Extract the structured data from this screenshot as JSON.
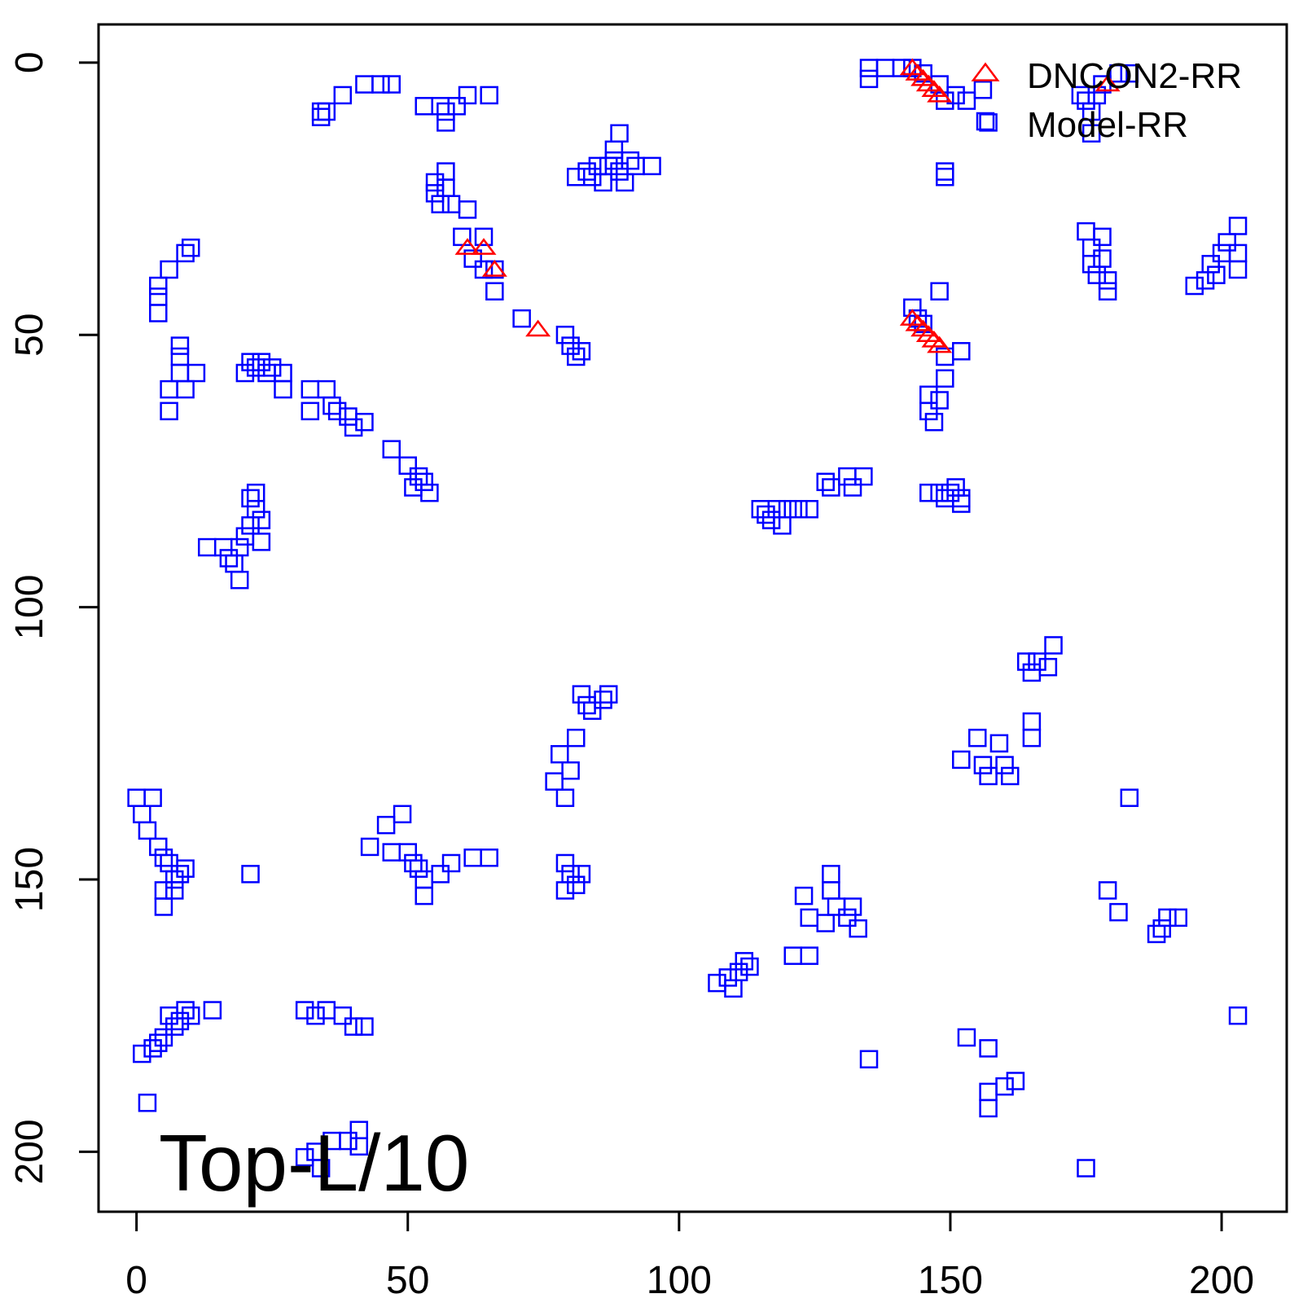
{
  "chart_data": {
    "type": "scatter",
    "annotation": "Top-L/10",
    "xlim": [
      -7,
      212
    ],
    "ylim": [
      -7,
      211
    ],
    "y_reversed": true,
    "x_ticks": [
      0,
      50,
      100,
      150,
      200
    ],
    "y_ticks": [
      0,
      50,
      100,
      150,
      200
    ],
    "legend": {
      "position": "top-right",
      "entries": [
        {
          "label": "DNCON2-RR",
          "shape": "triangle",
          "color": "#ff0000"
        },
        {
          "label": "Model-RR",
          "shape": "square",
          "color": "#0000ff"
        }
      ]
    },
    "series": [
      {
        "name": "Model-RR",
        "shape": "square",
        "color": "#0000ff",
        "points": [
          [
            34,
            9
          ],
          [
            34,
            10
          ],
          [
            35,
            9
          ],
          [
            38,
            6
          ],
          [
            42,
            4
          ],
          [
            45,
            4
          ],
          [
            47,
            4
          ],
          [
            53,
            8
          ],
          [
            56,
            8
          ],
          [
            57,
            9
          ],
          [
            57,
            11
          ],
          [
            59,
            8
          ],
          [
            61,
            6
          ],
          [
            65,
            6
          ],
          [
            55,
            22
          ],
          [
            55,
            24
          ],
          [
            57,
            20
          ],
          [
            57,
            23
          ],
          [
            56,
            26
          ],
          [
            58,
            26
          ],
          [
            61,
            27
          ],
          [
            60,
            32
          ],
          [
            64,
            32
          ],
          [
            62,
            36
          ],
          [
            64,
            38
          ],
          [
            66,
            38
          ],
          [
            66,
            42
          ],
          [
            71,
            47
          ],
          [
            79,
            50
          ],
          [
            80,
            52
          ],
          [
            81,
            54
          ],
          [
            82,
            53
          ],
          [
            81,
            21
          ],
          [
            83,
            20
          ],
          [
            84,
            21
          ],
          [
            85,
            19
          ],
          [
            86,
            22
          ],
          [
            87,
            19
          ],
          [
            88,
            18
          ],
          [
            89,
            20
          ],
          [
            90,
            22
          ],
          [
            91,
            18
          ],
          [
            92,
            19
          ],
          [
            95,
            19
          ],
          [
            89,
            13
          ],
          [
            88,
            16
          ],
          [
            135,
            1
          ],
          [
            135,
            3
          ],
          [
            138,
            1
          ],
          [
            141,
            1
          ],
          [
            143,
            1
          ],
          [
            145,
            2
          ],
          [
            148,
            4
          ],
          [
            149,
            7
          ],
          [
            151,
            6
          ],
          [
            153,
            7
          ],
          [
            156,
            5
          ],
          [
            157,
            11
          ],
          [
            149,
            20
          ],
          [
            149,
            21
          ],
          [
            174,
            6
          ],
          [
            175,
            7
          ],
          [
            176,
            9
          ],
          [
            176,
            13
          ],
          [
            177,
            6
          ],
          [
            178,
            4
          ],
          [
            181,
            2
          ],
          [
            183,
            2
          ],
          [
            175,
            31
          ],
          [
            176,
            34
          ],
          [
            176,
            37
          ],
          [
            177,
            39
          ],
          [
            178,
            32
          ],
          [
            178,
            36
          ],
          [
            179,
            40
          ],
          [
            179,
            42
          ],
          [
            195,
            41
          ],
          [
            197,
            40
          ],
          [
            198,
            37
          ],
          [
            199,
            39
          ],
          [
            200,
            35
          ],
          [
            201,
            33
          ],
          [
            203,
            35
          ],
          [
            203,
            38
          ],
          [
            203,
            30
          ],
          [
            143,
            45
          ],
          [
            144,
            47
          ],
          [
            145,
            48
          ],
          [
            148,
            42
          ],
          [
            149,
            54
          ],
          [
            149,
            58
          ],
          [
            152,
            53
          ],
          [
            146,
            61
          ],
          [
            146,
            64
          ],
          [
            147,
            66
          ],
          [
            148,
            62
          ],
          [
            148,
            79
          ],
          [
            149,
            80
          ],
          [
            150,
            79
          ],
          [
            151,
            78
          ],
          [
            152,
            81
          ],
          [
            152,
            80
          ],
          [
            146,
            79
          ],
          [
            115,
            82
          ],
          [
            116,
            83
          ],
          [
            117,
            84
          ],
          [
            118,
            82
          ],
          [
            119,
            85
          ],
          [
            120,
            82
          ],
          [
            122,
            82
          ],
          [
            124,
            82
          ],
          [
            127,
            77
          ],
          [
            128,
            78
          ],
          [
            131,
            76
          ],
          [
            132,
            78
          ],
          [
            134,
            76
          ],
          [
            10,
            34
          ],
          [
            9,
            35
          ],
          [
            6,
            38
          ],
          [
            4,
            41
          ],
          [
            4,
            43
          ],
          [
            4,
            46
          ],
          [
            8,
            52
          ],
          [
            8,
            54
          ],
          [
            8,
            57
          ],
          [
            9,
            60
          ],
          [
            11,
            57
          ],
          [
            6,
            64
          ],
          [
            6,
            60
          ],
          [
            20,
            57
          ],
          [
            21,
            55
          ],
          [
            22,
            56
          ],
          [
            23,
            55
          ],
          [
            24,
            57
          ],
          [
            25,
            56
          ],
          [
            27,
            57
          ],
          [
            27,
            60
          ],
          [
            32,
            60
          ],
          [
            32,
            64
          ],
          [
            35,
            60
          ],
          [
            36,
            63
          ],
          [
            37,
            64
          ],
          [
            39,
            65
          ],
          [
            40,
            67
          ],
          [
            42,
            66
          ],
          [
            47,
            71
          ],
          [
            50,
            74
          ],
          [
            52,
            76
          ],
          [
            53,
            77
          ],
          [
            54,
            79
          ],
          [
            51,
            78
          ],
          [
            13,
            89
          ],
          [
            16,
            89
          ],
          [
            17,
            91
          ],
          [
            18,
            92
          ],
          [
            19,
            89
          ],
          [
            19,
            95
          ],
          [
            20,
            87
          ],
          [
            21,
            85
          ],
          [
            22,
            82
          ],
          [
            23,
            84
          ],
          [
            23,
            88
          ],
          [
            21,
            80
          ],
          [
            22,
            79
          ],
          [
            0,
            135
          ],
          [
            1,
            138
          ],
          [
            2,
            141
          ],
          [
            3,
            135
          ],
          [
            4,
            144
          ],
          [
            5,
            146
          ],
          [
            6,
            147
          ],
          [
            7,
            150
          ],
          [
            8,
            149
          ],
          [
            9,
            148
          ],
          [
            5,
            152
          ],
          [
            5,
            155
          ],
          [
            7,
            152
          ],
          [
            21,
            149
          ],
          [
            43,
            144
          ],
          [
            46,
            140
          ],
          [
            47,
            145
          ],
          [
            49,
            138
          ],
          [
            50,
            145
          ],
          [
            51,
            147
          ],
          [
            52,
            148
          ],
          [
            53,
            150
          ],
          [
            53,
            153
          ],
          [
            56,
            149
          ],
          [
            58,
            147
          ],
          [
            62,
            146
          ],
          [
            65,
            146
          ],
          [
            82,
            116
          ],
          [
            83,
            118
          ],
          [
            84,
            119
          ],
          [
            86,
            117
          ],
          [
            87,
            116
          ],
          [
            81,
            124
          ],
          [
            78,
            127
          ],
          [
            77,
            132
          ],
          [
            79,
            135
          ],
          [
            80,
            130
          ],
          [
            79,
            147
          ],
          [
            80,
            149
          ],
          [
            81,
            151
          ],
          [
            82,
            149
          ],
          [
            79,
            152
          ],
          [
            164,
            110
          ],
          [
            165,
            112
          ],
          [
            166,
            110
          ],
          [
            168,
            111
          ],
          [
            169,
            107
          ],
          [
            165,
            121
          ],
          [
            165,
            124
          ],
          [
            152,
            128
          ],
          [
            155,
            124
          ],
          [
            156,
            129
          ],
          [
            157,
            131
          ],
          [
            159,
            125
          ],
          [
            160,
            129
          ],
          [
            161,
            131
          ],
          [
            183,
            135
          ],
          [
            128,
            149
          ],
          [
            128,
            152
          ],
          [
            129,
            155
          ],
          [
            131,
            157
          ],
          [
            132,
            155
          ],
          [
            133,
            159
          ],
          [
            123,
            153
          ],
          [
            124,
            157
          ],
          [
            127,
            158
          ],
          [
            107,
            169
          ],
          [
            109,
            168
          ],
          [
            110,
            170
          ],
          [
            111,
            167
          ],
          [
            112,
            165
          ],
          [
            113,
            166
          ],
          [
            121,
            164
          ],
          [
            124,
            164
          ],
          [
            179,
            152
          ],
          [
            181,
            156
          ],
          [
            188,
            160
          ],
          [
            189,
            159
          ],
          [
            190,
            157
          ],
          [
            192,
            157
          ],
          [
            1,
            182
          ],
          [
            3,
            181
          ],
          [
            4,
            180
          ],
          [
            5,
            179
          ],
          [
            6,
            175
          ],
          [
            7,
            177
          ],
          [
            8,
            176
          ],
          [
            9,
            174
          ],
          [
            10,
            175
          ],
          [
            14,
            174
          ],
          [
            2,
            191
          ],
          [
            31,
            174
          ],
          [
            33,
            175
          ],
          [
            35,
            174
          ],
          [
            38,
            175
          ],
          [
            40,
            177
          ],
          [
            42,
            177
          ],
          [
            31,
            201
          ],
          [
            33,
            200
          ],
          [
            34,
            203
          ],
          [
            36,
            198
          ],
          [
            39,
            198
          ],
          [
            41,
            199
          ],
          [
            41,
            196
          ],
          [
            135,
            183
          ],
          [
            153,
            179
          ],
          [
            157,
            181
          ],
          [
            157,
            189
          ],
          [
            157,
            192
          ],
          [
            160,
            188
          ],
          [
            162,
            187
          ],
          [
            175,
            203
          ],
          [
            203,
            175
          ]
        ]
      },
      {
        "name": "DNCON2-RR",
        "shape": "triangle",
        "color": "#ff0000",
        "points": [
          [
            61,
            34
          ],
          [
            64,
            34
          ],
          [
            66,
            38
          ],
          [
            74,
            49
          ],
          [
            143,
            1
          ],
          [
            144,
            2
          ],
          [
            145,
            3
          ],
          [
            146,
            4
          ],
          [
            147,
            5
          ],
          [
            148,
            6
          ],
          [
            143,
            47
          ],
          [
            144,
            48
          ],
          [
            145,
            49
          ],
          [
            146,
            50
          ],
          [
            147,
            51
          ],
          [
            148,
            52
          ],
          [
            179,
            4
          ]
        ]
      }
    ]
  }
}
